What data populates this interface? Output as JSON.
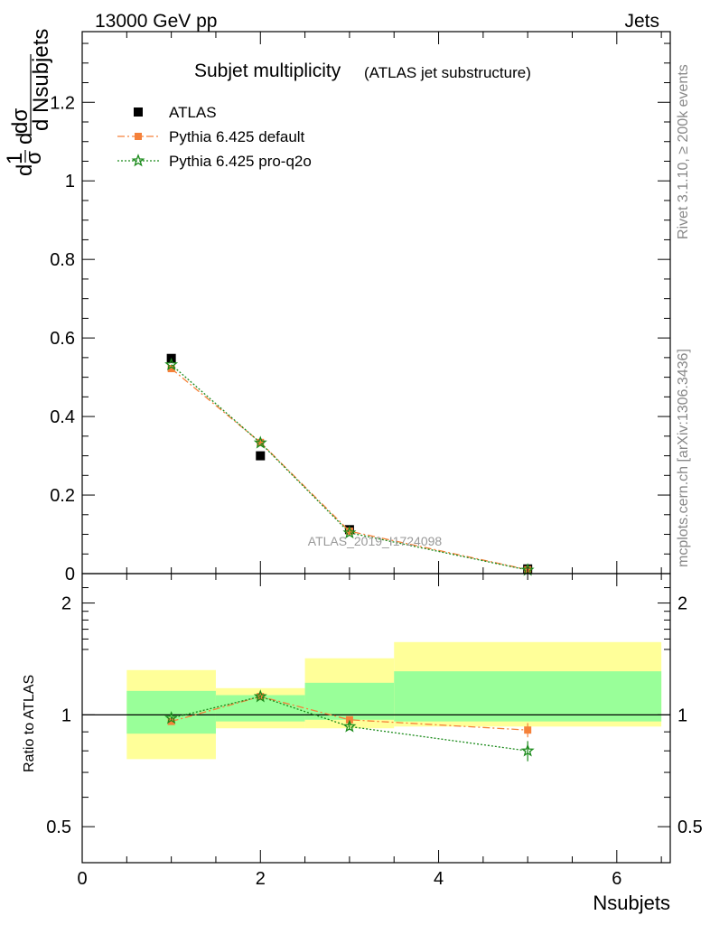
{
  "header": {
    "energy_label": "13000 GeV pp",
    "process_label": "Jets"
  },
  "side_labels": {
    "rivet": "Rivet 3.1.10, ≥ 200k events",
    "source": "mcplots.cern.ch [arXiv:1306.3436]"
  },
  "watermark": "ATLAS_2019_I1724098",
  "chart_data": [
    {
      "type": "scatter",
      "title": "Subjet multiplicity",
      "subtitle": "(ATLAS jet substructure)",
      "ylabel": "1/σ dσ/d Nsubjets",
      "xlim": [
        0,
        6.6
      ],
      "ylim": [
        0,
        1.38
      ],
      "yticks": [
        0,
        0.2,
        0.4,
        0.6,
        0.8,
        1,
        1.2
      ],
      "yticklabels": [
        "0",
        "0.2",
        "0.4",
        "0.6",
        "0.8",
        "1",
        "1.2"
      ],
      "legend_position": "top-left",
      "series": [
        {
          "name": "ATLAS",
          "color": "#000000",
          "marker": "square",
          "x": [
            1,
            2,
            3,
            5
          ],
          "y": [
            0.548,
            0.3,
            0.112,
            0.012
          ]
        },
        {
          "name": "Pythia 6.425 default",
          "color": "#f5813a",
          "marker": "square",
          "line": "dash-dot",
          "x": [
            1,
            2,
            3,
            5
          ],
          "y": [
            0.522,
            0.334,
            0.108,
            0.01
          ]
        },
        {
          "name": "Pythia 6.425 pro-q2o",
          "color": "#1a8a1a",
          "marker": "star",
          "line": "dotted",
          "x": [
            1,
            2,
            3,
            5
          ],
          "y": [
            0.532,
            0.333,
            0.104,
            0.009
          ]
        }
      ]
    },
    {
      "type": "scatter",
      "xlabel": "Nsubjets",
      "ylabel": "Ratio to ATLAS",
      "xlim": [
        0,
        6.6
      ],
      "ylim": [
        0.4,
        2.4
      ],
      "log_y": true,
      "xticks": [
        0,
        2,
        4,
        6
      ],
      "xticklabels": [
        "0",
        "2",
        "4",
        "6"
      ],
      "yticks": [
        0.5,
        1,
        2
      ],
      "yticklabels": [
        "0.5",
        "1",
        "2"
      ],
      "uncertainty_bands": [
        {
          "x_range": [
            0.5,
            1.5
          ],
          "inner": [
            0.89,
            1.16
          ],
          "outer": [
            0.76,
            1.32
          ]
        },
        {
          "x_range": [
            1.5,
            2.5
          ],
          "inner": [
            0.96,
            1.13
          ],
          "outer": [
            0.92,
            1.18
          ]
        },
        {
          "x_range": [
            2.5,
            3.5
          ],
          "inner": [
            0.97,
            1.22
          ],
          "outer": [
            0.92,
            1.42
          ]
        },
        {
          "x_range": [
            3.5,
            6.5
          ],
          "inner": [
            0.96,
            1.31
          ],
          "outer": [
            0.93,
            1.57
          ]
        }
      ],
      "band_colors": {
        "inner": "#99ff99",
        "outer": "#ffff99"
      },
      "series": [
        {
          "name": "Pythia 6.425 default",
          "color": "#f5813a",
          "x": [
            1,
            2,
            3,
            5
          ],
          "y": [
            0.96,
            1.12,
            0.97,
            0.91
          ],
          "err": [
            0.01,
            0.01,
            0.02,
            0.04
          ]
        },
        {
          "name": "Pythia 6.425 pro-q2o",
          "color": "#1a8a1a",
          "x": [
            1,
            2,
            3,
            5
          ],
          "y": [
            0.98,
            1.12,
            0.93,
            0.8
          ],
          "err": [
            0.01,
            0.01,
            0.02,
            0.05
          ]
        }
      ]
    }
  ]
}
